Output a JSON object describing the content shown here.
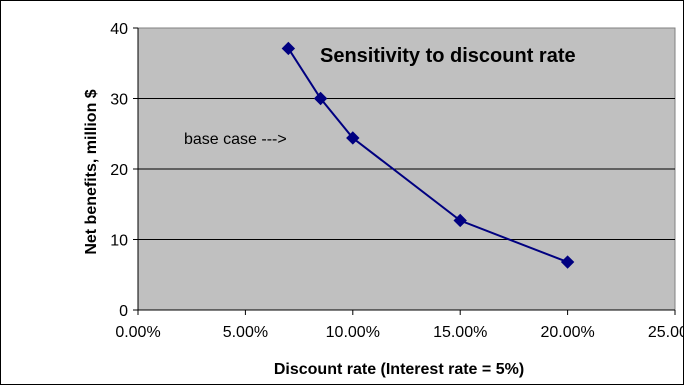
{
  "chart_data": {
    "type": "scatter",
    "title": "Sensitivity to discount rate",
    "xlabel": "Discount rate (Interest rate = 5%)",
    "ylabel": "Net benefits, million $",
    "xlim": [
      0.0,
      0.25
    ],
    "ylim": [
      0,
      40
    ],
    "x_ticks": [
      0.0,
      0.05,
      0.1,
      0.15,
      0.2,
      0.25
    ],
    "x_tick_labels": [
      "0.00%",
      "5.00%",
      "10.00%",
      "15.00%",
      "20.00%",
      "25.00%"
    ],
    "y_ticks": [
      0,
      10,
      20,
      30,
      40
    ],
    "y_tick_labels": [
      "0",
      "10",
      "20",
      "30",
      "40"
    ],
    "grid": "horizontal",
    "series": [
      {
        "x": [
          0.07,
          0.085,
          0.1,
          0.15,
          0.2
        ],
        "values": [
          37.1,
          30.0,
          24.4,
          12.7,
          6.8
        ],
        "line_style": "smooth line with diamond markers"
      }
    ],
    "annotations": [
      {
        "text": "base case --->",
        "x": 0.1,
        "y": 24.4
      }
    ],
    "colors": {
      "series": "#000080",
      "plot_background": "#c0c0c0",
      "grid": "#000000"
    }
  }
}
